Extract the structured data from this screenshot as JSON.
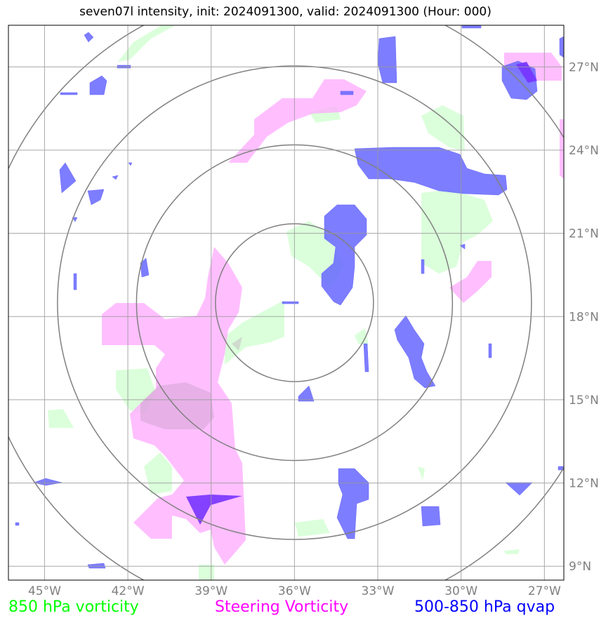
{
  "title": "seven07l intensity, init: 2024091300, valid: 2024091300 (Hour: 000)",
  "chart_data": {
    "type": "map",
    "title": "seven07l intensity, init: 2024091300, valid: 2024091300 (Hour: 000)",
    "lon_range": [
      -46.3,
      -26.3
    ],
    "lat_range": [
      8.5,
      28.5
    ],
    "lon_ticks": [
      -45,
      -42,
      -39,
      -36,
      -33,
      -30,
      -27
    ],
    "lon_tick_labels": [
      "45°W",
      "42°W",
      "39°W",
      "36°W",
      "33°W",
      "30°W",
      "27°W"
    ],
    "lat_ticks": [
      9,
      12,
      15,
      18,
      21,
      24,
      27
    ],
    "lat_tick_labels": [
      "9°N",
      "12°N",
      "15°N",
      "18°N",
      "21°N",
      "24°N",
      "27°N"
    ],
    "grid": true,
    "range_rings_center": {
      "lon": -36.0,
      "lat": 18.5
    },
    "range_rings": 4,
    "legend": [
      {
        "label": "850 hPa vorticity",
        "color": "#00ff00"
      },
      {
        "label": "Steering Vorticity",
        "color": "#ff00ff"
      },
      {
        "label": "500-850 hPa qvap",
        "color": "#0000ff"
      }
    ],
    "fill_colors": {
      "vort850": "#ccffcc",
      "steering": "#ffaaff",
      "qvap": "#6666ff"
    }
  }
}
